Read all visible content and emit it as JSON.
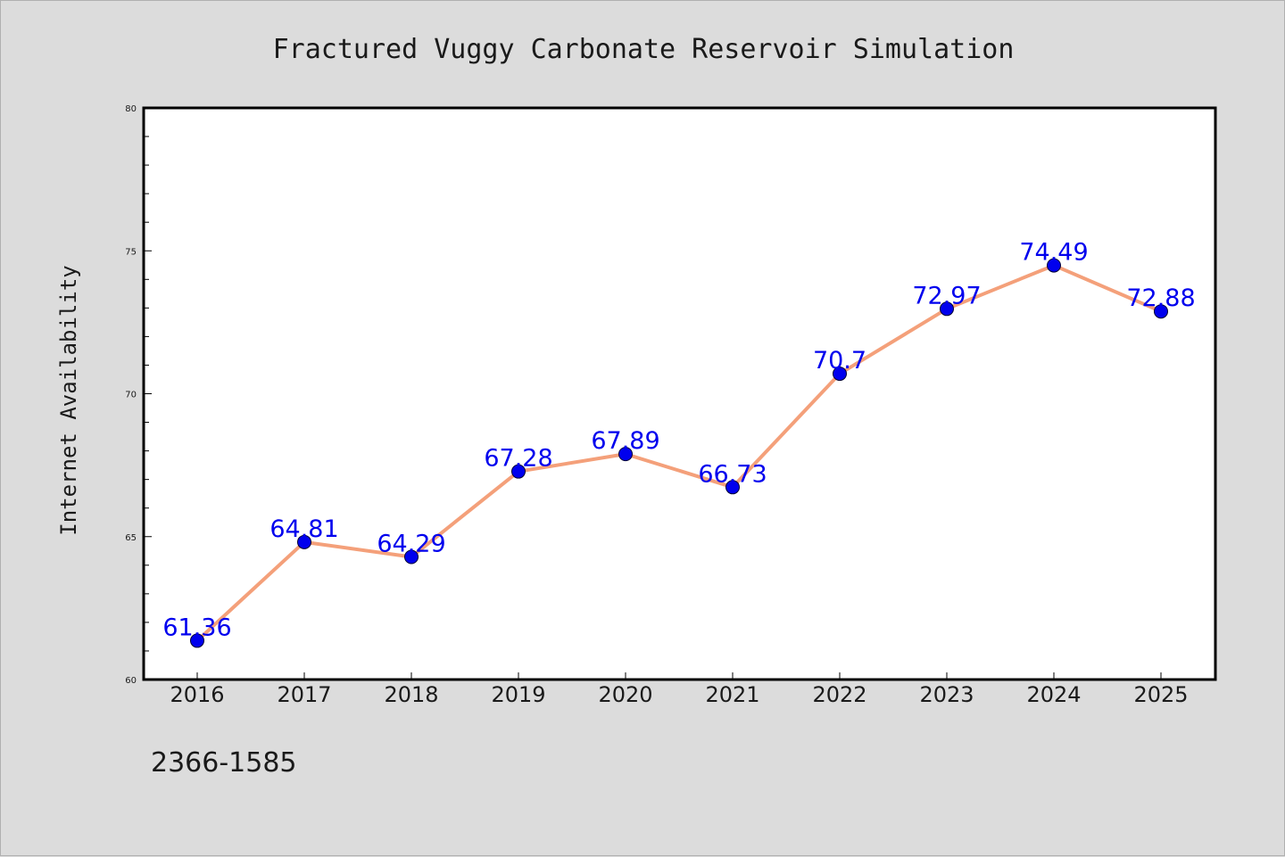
{
  "colors": {
    "background": "#dcdcdc",
    "plot_background": "#ffffff",
    "line": "#f4a07a",
    "marker_fill": "#0000ee",
    "marker_edge": "#000033",
    "data_label": "#0000ee",
    "axis": "#000000"
  },
  "footnote": "2366-1585",
  "chart_data": {
    "type": "line",
    "title": "Fractured Vuggy Carbonate Reservoir Simulation",
    "xlabel": "",
    "ylabel": "Internet Availability",
    "categories": [
      "2016",
      "2017",
      "2018",
      "2019",
      "2020",
      "2021",
      "2022",
      "2023",
      "2024",
      "2025"
    ],
    "series": [
      {
        "values": [
          61.36,
          64.81,
          64.29,
          67.28,
          67.89,
          66.73,
          70.7,
          72.97,
          74.49,
          72.88
        ],
        "labels": [
          "61.36",
          "64.81",
          "64.29",
          "67.28",
          "67.89",
          "66.73",
          "70.7",
          "72.97",
          "74.49",
          "72.88"
        ]
      }
    ],
    "ylim": [
      60,
      80
    ],
    "yticks": [
      "60",
      "65",
      "70",
      "75",
      "80"
    ],
    "y_minor_step": 1,
    "grid": false,
    "legend": "none"
  }
}
